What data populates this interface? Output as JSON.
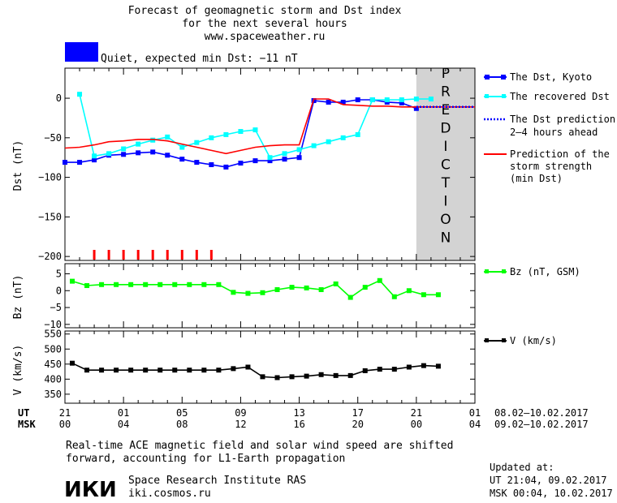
{
  "header": {
    "title_line1": "Forecast of geomagnetic storm and Dst index",
    "title_line2": "for the next several hours",
    "website": "www.spaceweather.ru",
    "status": "Quiet, expected min Dst: −11 nT",
    "status_color": "#0000ff"
  },
  "colors": {
    "dst_kyoto": "#0000ff",
    "recovered": "#00ffff",
    "prediction_line": "#ff0000",
    "prediction_band": "#d3d3d3",
    "storm_markers": "#ff0000",
    "bz": "#00ff00",
    "v": "#000000"
  },
  "legend": {
    "dst_kyoto": "The Dst, Kyoto",
    "recovered": "The recovered Dst",
    "prediction_l1": "The Dst prediction",
    "prediction_l2": "2–4 hours ahead",
    "strength_l1": "Prediction of the",
    "strength_l2": "storm strength",
    "strength_l3": "(min Dst)",
    "bz": "Bz (nT, GSM)",
    "v": "V (km/s)"
  },
  "prediction_label": "PREDICTION",
  "time_axis": {
    "ut_label": "UT",
    "msk_label": "MSK",
    "ut_ticks": [
      "21",
      "01",
      "05",
      "09",
      "13",
      "17",
      "21",
      "01"
    ],
    "msk_ticks": [
      "00",
      "04",
      "08",
      "12",
      "16",
      "20",
      "00",
      "04"
    ],
    "ut_range": "08.02–10.02.2017",
    "msk_range": "09.02–10.02.2017"
  },
  "footer": {
    "note_l1": "Real-time ACE magnetic field and solar wind speed are shifted",
    "note_l2": "forward, accounting for L1-Earth propagation",
    "institute": "Space Research Institute RAS",
    "site": "iki.cosmos.ru",
    "logo_text": "ИКИ",
    "updated_label": "Updated at:",
    "updated_ut": "UT   21:04, 09.02.2017",
    "updated_msk": "MSK 00:04, 10.02.2017"
  },
  "chart_data": [
    {
      "type": "line",
      "panel": "dst",
      "xlabel": "",
      "ylabel": "Dst (nT)",
      "ylim": [
        -205,
        38
      ],
      "xlim_hours": [
        0,
        28
      ],
      "x_note": "hours after 21:00 UT 08.02.2017",
      "yticks": [
        0,
        -50,
        -100,
        -150,
        -200
      ],
      "prediction_region_hours": [
        24,
        28
      ],
      "storm_markers_hours": [
        2,
        3,
        4,
        5,
        6,
        7,
        8,
        9,
        10
      ],
      "series": [
        {
          "name": "The Dst, Kyoto",
          "x": [
            0,
            1,
            2,
            3,
            4,
            5,
            6,
            7,
            8,
            9,
            10,
            11,
            12,
            13,
            14,
            15,
            16,
            17,
            18,
            19,
            20,
            21,
            22,
            23,
            24
          ],
          "values": [
            -81,
            -81,
            -78,
            -72,
            -71,
            -69,
            -68,
            -72,
            -77,
            -81,
            -84,
            -87,
            -82,
            -79,
            -79,
            -77,
            -75,
            -3,
            -5,
            -5,
            -2,
            -2,
            -5,
            -6,
            -13
          ]
        },
        {
          "name": "The recovered Dst",
          "x": [
            1,
            2,
            3,
            4,
            5,
            6,
            7,
            8,
            9,
            10,
            11,
            12,
            13,
            14,
            15,
            16,
            17,
            18,
            19,
            20,
            21,
            22,
            23,
            24,
            25
          ],
          "values": [
            5,
            -73,
            -70,
            -64,
            -58,
            -53,
            -49,
            -62,
            -56,
            -50,
            -46,
            -42,
            -40,
            -75,
            -70,
            -65,
            -60,
            -55,
            -50,
            -46,
            -2,
            -2,
            -2,
            -1,
            -1
          ]
        },
        {
          "name": "Prediction of the storm strength (min Dst)",
          "x": [
            0,
            1,
            2,
            3,
            4,
            5,
            6,
            7,
            8,
            9,
            10,
            11,
            12,
            13,
            14,
            15,
            16,
            17,
            18,
            19,
            20,
            21,
            22,
            23,
            24,
            25,
            26,
            27,
            28
          ],
          "values": [
            -63,
            -62,
            -59,
            -55,
            -54,
            -52,
            -52,
            -54,
            -58,
            -62,
            -66,
            -70,
            -66,
            -62,
            -60,
            -59,
            -59,
            -1,
            -1,
            -8,
            -9,
            -10,
            -10,
            -11,
            -11,
            -11,
            -11,
            -11,
            -11
          ]
        },
        {
          "name": "The Dst prediction 2–4 hours ahead",
          "x": [
            24,
            28
          ],
          "values": [
            -11,
            -11
          ]
        }
      ]
    },
    {
      "type": "line",
      "panel": "bz",
      "xlabel": "",
      "ylabel": "Bz (nT)",
      "ylim": [
        -11,
        8
      ],
      "yticks": [
        5,
        0,
        -5,
        -10
      ],
      "series": [
        {
          "name": "Bz (nT, GSM)",
          "x": [
            0.5,
            1.5,
            2.5,
            3.5,
            4.5,
            5.5,
            6.5,
            7.5,
            8.5,
            9.5,
            10.5,
            11.5,
            12.5,
            13.5,
            14.5,
            15.5,
            16.5,
            17.5,
            18.5,
            19.5,
            20.5,
            21.5,
            22.5,
            23.5,
            24.5,
            25.5
          ],
          "values": [
            2.8,
            1.5,
            1.8,
            1.8,
            1.8,
            1.8,
            1.8,
            1.8,
            1.8,
            1.8,
            1.8,
            -0.5,
            -0.8,
            -0.6,
            0.3,
            1.0,
            0.8,
            0.3,
            2.0,
            -2.0,
            1.0,
            3.0,
            -1.8,
            0.0,
            -1.2,
            -1.2
          ]
        }
      ]
    },
    {
      "type": "line",
      "panel": "v",
      "xlabel": "",
      "ylabel": "V (km/s)",
      "ylim": [
        320,
        560
      ],
      "yticks": [
        350,
        400,
        450,
        500,
        550
      ],
      "series": [
        {
          "name": "V (km/s)",
          "x": [
            0.5,
            1.5,
            2.5,
            3.5,
            4.5,
            5.5,
            6.5,
            7.5,
            8.5,
            9.5,
            10.5,
            11.5,
            12.5,
            13.5,
            14.5,
            15.5,
            16.5,
            17.5,
            18.5,
            19.5,
            20.5,
            21.5,
            22.5,
            23.5,
            24.5,
            25.5
          ],
          "values": [
            453,
            430,
            430,
            430,
            430,
            430,
            430,
            430,
            430,
            430,
            430,
            435,
            440,
            408,
            405,
            408,
            410,
            415,
            412,
            412,
            428,
            433,
            433,
            440,
            445,
            443
          ]
        }
      ]
    }
  ]
}
